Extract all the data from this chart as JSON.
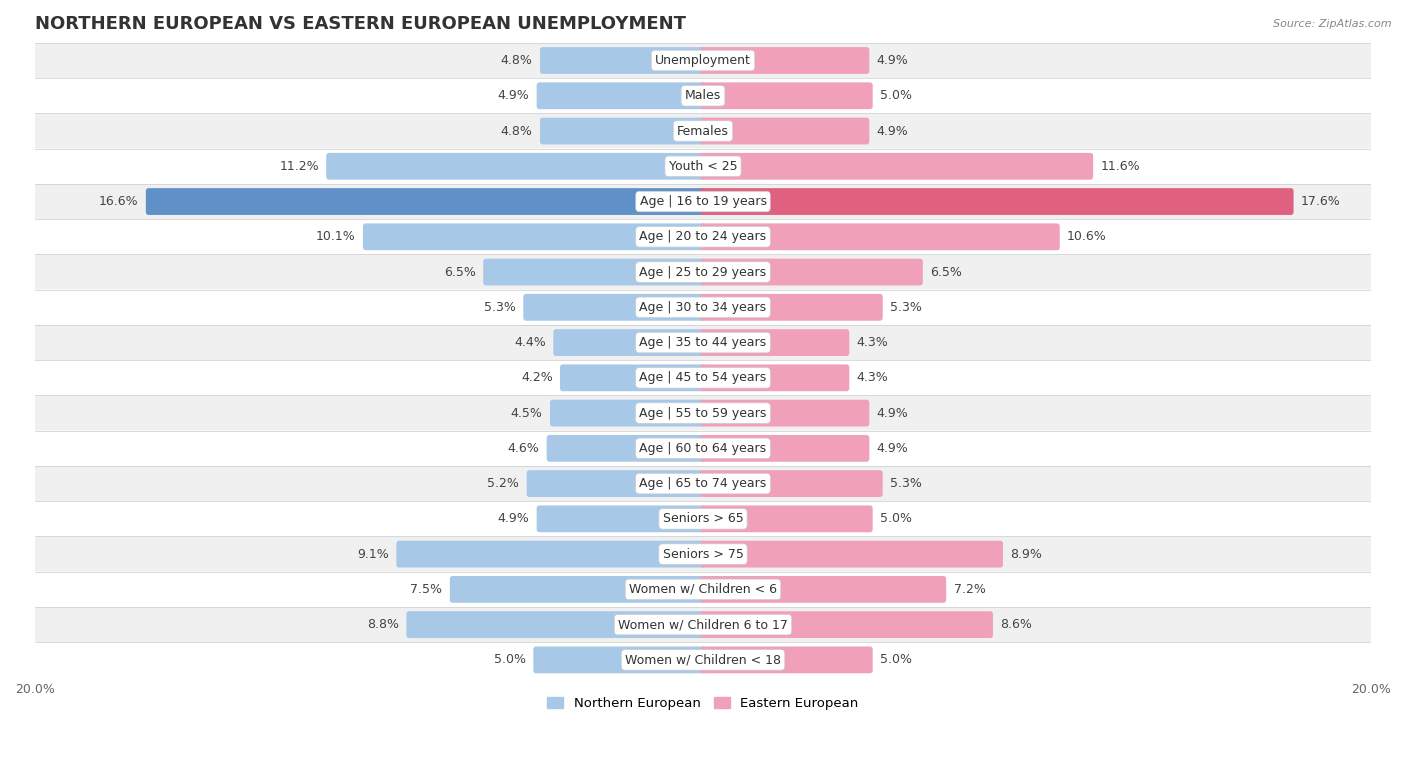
{
  "title": "NORTHERN EUROPEAN VS EASTERN EUROPEAN UNEMPLOYMENT",
  "source": "Source: ZipAtlas.com",
  "categories": [
    "Unemployment",
    "Males",
    "Females",
    "Youth < 25",
    "Age | 16 to 19 years",
    "Age | 20 to 24 years",
    "Age | 25 to 29 years",
    "Age | 30 to 34 years",
    "Age | 35 to 44 years",
    "Age | 45 to 54 years",
    "Age | 55 to 59 years",
    "Age | 60 to 64 years",
    "Age | 65 to 74 years",
    "Seniors > 65",
    "Seniors > 75",
    "Women w/ Children < 6",
    "Women w/ Children 6 to 17",
    "Women w/ Children < 18"
  ],
  "northern_european": [
    4.8,
    4.9,
    4.8,
    11.2,
    16.6,
    10.1,
    6.5,
    5.3,
    4.4,
    4.2,
    4.5,
    4.6,
    5.2,
    4.9,
    9.1,
    7.5,
    8.8,
    5.0
  ],
  "eastern_european": [
    4.9,
    5.0,
    4.9,
    11.6,
    17.6,
    10.6,
    6.5,
    5.3,
    4.3,
    4.3,
    4.9,
    4.9,
    5.3,
    5.0,
    8.9,
    7.2,
    8.6,
    5.0
  ],
  "northern_color_normal": "#a8c8e8",
  "eastern_color_normal": "#f0a0b8",
  "northern_color_highlight": "#6090c8",
  "eastern_color_highlight": "#e06080",
  "highlight_row": 4,
  "northern_label": "Northern European",
  "eastern_label": "Eastern European",
  "axis_limit": 20.0,
  "background_color": "#ffffff",
  "row_color_even": "#f0f0f0",
  "row_color_odd": "#ffffff",
  "title_fontsize": 13,
  "label_fontsize": 9,
  "value_fontsize": 9,
  "bar_height": 0.6
}
